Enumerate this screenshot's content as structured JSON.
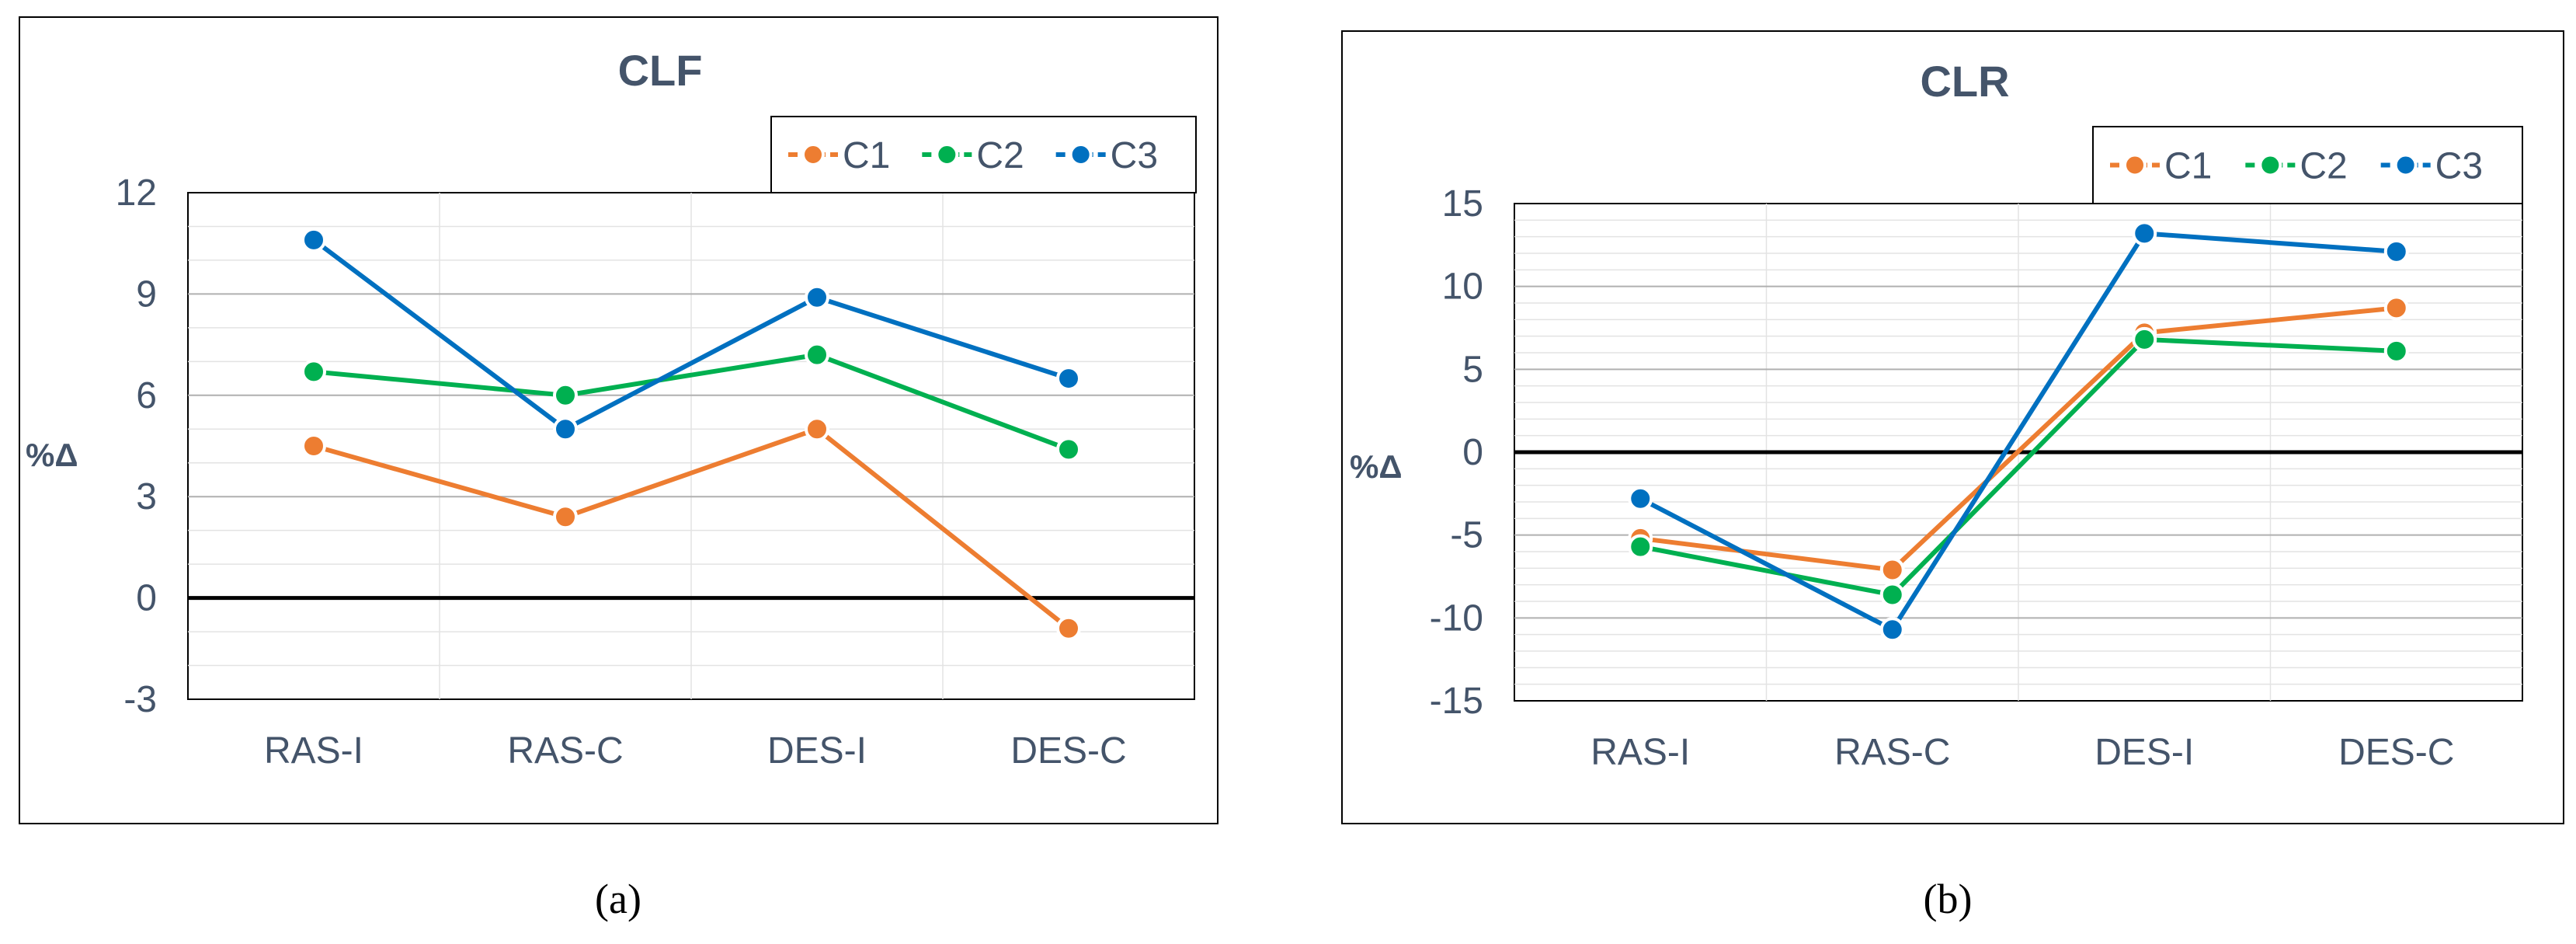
{
  "chart_data": [
    {
      "type": "line",
      "title": "CLF",
      "ylabel": "%Δ",
      "xlabel": "",
      "categories": [
        "RAS-I",
        "RAS-C",
        "DES-I",
        "DES-C"
      ],
      "yticks": [
        12,
        9,
        6,
        3,
        0,
        -3
      ],
      "ylim": [
        -3,
        12
      ],
      "minor_step": 1,
      "legend_position": "top-right",
      "caption": "(a)",
      "series": [
        {
          "name": "C1",
          "color": "#ED7D31",
          "values": [
            4.5,
            2.4,
            5.0,
            -0.9
          ]
        },
        {
          "name": "C2",
          "color": "#00B050",
          "values": [
            6.7,
            6.0,
            7.2,
            4.4
          ]
        },
        {
          "name": "C3",
          "color": "#0070C0",
          "values": [
            10.6,
            5.0,
            8.9,
            6.5
          ]
        }
      ]
    },
    {
      "type": "line",
      "title": "CLR",
      "ylabel": "%Δ",
      "xlabel": "",
      "categories": [
        "RAS-I",
        "RAS-C",
        "DES-I",
        "DES-C"
      ],
      "yticks": [
        15,
        10,
        5,
        0,
        -5,
        -10,
        -15
      ],
      "ylim": [
        -15,
        15
      ],
      "minor_step": 1,
      "legend_position": "top-right",
      "caption": "(b)",
      "series": [
        {
          "name": "C1",
          "color": "#ED7D31",
          "values": [
            -5.2,
            -7.1,
            7.2,
            8.7
          ]
        },
        {
          "name": "C2",
          "color": "#00B050",
          "values": [
            -5.7,
            -8.6,
            6.8,
            6.1
          ]
        },
        {
          "name": "C3",
          "color": "#0070C0",
          "values": [
            -2.8,
            -10.7,
            13.2,
            12.1
          ]
        }
      ]
    }
  ]
}
